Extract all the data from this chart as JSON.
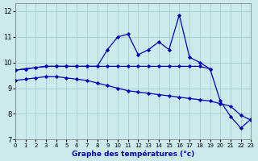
{
  "xlabel": "Graphe des températures (°c)",
  "bg_color": "#cce9ec",
  "grid_color": "#a8cccc",
  "line_color": "#0000bb",
  "xlim": [
    0,
    23
  ],
  "ylim": [
    7,
    12.3
  ],
  "yticks": [
    7,
    8,
    9,
    10,
    11,
    12
  ],
  "xticks": [
    0,
    1,
    2,
    3,
    4,
    5,
    6,
    7,
    8,
    9,
    10,
    11,
    12,
    13,
    14,
    15,
    16,
    17,
    18,
    19,
    20,
    21,
    22,
    23
  ],
  "line_flat_x": [
    0,
    1,
    2,
    3,
    4,
    5,
    6,
    7,
    8,
    9,
    10,
    11,
    12,
    13,
    14,
    15,
    16,
    17,
    18,
    19
  ],
  "line_flat_y": [
    9.7,
    9.75,
    9.8,
    9.85,
    9.85,
    9.85,
    9.85,
    9.85,
    9.85,
    9.85,
    9.85,
    9.85,
    9.85,
    9.85,
    9.85,
    9.85,
    9.85,
    9.85,
    9.85,
    9.75
  ],
  "line_spiky_x": [
    0,
    1,
    2,
    3,
    4,
    5,
    6,
    7,
    8,
    9,
    10,
    11,
    12,
    13,
    14,
    15,
    16,
    17,
    18,
    19,
    20,
    21,
    22,
    23
  ],
  "line_spiky_y": [
    9.7,
    9.75,
    9.8,
    9.85,
    9.85,
    9.85,
    9.85,
    9.85,
    9.85,
    10.5,
    11.0,
    11.1,
    10.3,
    10.5,
    10.8,
    10.5,
    11.85,
    10.2,
    10.0,
    9.75,
    8.5,
    7.9,
    7.45,
    7.8
  ],
  "line_decline_x": [
    0,
    1,
    2,
    3,
    4,
    5,
    6,
    7,
    8,
    9,
    10,
    11,
    12,
    13,
    14,
    15,
    16,
    17,
    18,
    19,
    20,
    21,
    22,
    23
  ],
  "line_decline_y": [
    9.3,
    9.35,
    9.4,
    9.45,
    9.45,
    9.4,
    9.35,
    9.3,
    9.2,
    9.1,
    9.0,
    8.9,
    8.85,
    8.8,
    8.75,
    8.7,
    8.65,
    8.6,
    8.55,
    8.5,
    8.4,
    8.3,
    7.95,
    7.75
  ]
}
